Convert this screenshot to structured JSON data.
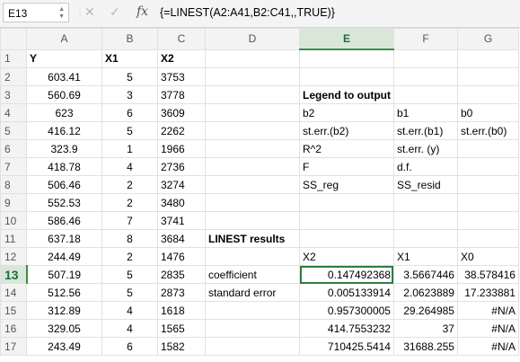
{
  "formula_bar": {
    "name_box": "E13",
    "cancel_icon": "✕",
    "enter_icon": "✓",
    "fx_label": "fx",
    "formula": "{=LINEST(A2:A41,B2:C41,,TRUE)}"
  },
  "columns": [
    "A",
    "B",
    "C",
    "D",
    "E",
    "F",
    "G"
  ],
  "rows": [
    {
      "n": "1",
      "A": "Y",
      "B": "X1",
      "C": "X2",
      "D": "",
      "E": "",
      "F": "",
      "G": ""
    },
    {
      "n": "2",
      "A": "603.41",
      "B": "5",
      "C": "3753",
      "D": "",
      "E": "",
      "F": "",
      "G": ""
    },
    {
      "n": "3",
      "A": "560.69",
      "B": "3",
      "C": "3778",
      "D": "",
      "E": "Legend to output",
      "F": "",
      "G": ""
    },
    {
      "n": "4",
      "A": "623",
      "B": "6",
      "C": "3609",
      "D": "",
      "E": "b2",
      "F": "b1",
      "G": "b0"
    },
    {
      "n": "5",
      "A": "416.12",
      "B": "5",
      "C": "2262",
      "D": "",
      "E": "st.err.(b2)",
      "F": "st.err.(b1)",
      "G": "st.err.(b0)"
    },
    {
      "n": "6",
      "A": "323.9",
      "B": "1",
      "C": "1966",
      "D": "",
      "E": "R^2",
      "F": "st.err. (y)",
      "G": ""
    },
    {
      "n": "7",
      "A": "418.78",
      "B": "4",
      "C": "2736",
      "D": "",
      "E": "F",
      "F": "d.f.",
      "G": ""
    },
    {
      "n": "8",
      "A": "506.46",
      "B": "2",
      "C": "3274",
      "D": "",
      "E": "SS_reg",
      "F": "SS_resid",
      "G": ""
    },
    {
      "n": "9",
      "A": "552.53",
      "B": "2",
      "C": "3480",
      "D": "",
      "E": "",
      "F": "",
      "G": ""
    },
    {
      "n": "10",
      "A": "586.46",
      "B": "7",
      "C": "3741",
      "D": "",
      "E": "",
      "F": "",
      "G": ""
    },
    {
      "n": "11",
      "A": "637.18",
      "B": "8",
      "C": "3684",
      "D": "LINEST results",
      "E": "",
      "F": "",
      "G": ""
    },
    {
      "n": "12",
      "A": "244.49",
      "B": "2",
      "C": "1476",
      "D": "",
      "E": "X2",
      "F": "X1",
      "G": "X0"
    },
    {
      "n": "13",
      "A": "507.19",
      "B": "5",
      "C": "2835",
      "D": "coefficient",
      "E": "0.147492368",
      "F": "3.5667446",
      "G": "38.578416"
    },
    {
      "n": "14",
      "A": "512.56",
      "B": "5",
      "C": "2873",
      "D": "standard error",
      "E": "0.005133914",
      "F": "2.0623889",
      "G": "17.233881"
    },
    {
      "n": "15",
      "A": "312.89",
      "B": "4",
      "C": "1618",
      "D": "",
      "E": "0.957300005",
      "F": "29.264985",
      "G": "#N/A"
    },
    {
      "n": "16",
      "A": "329.05",
      "B": "4",
      "C": "1565",
      "D": "",
      "E": "414.7553232",
      "F": "37",
      "G": "#N/A"
    },
    {
      "n": "17",
      "A": "243.49",
      "B": "6",
      "C": "1582",
      "D": "",
      "E": "710425.5414",
      "F": "31688.255",
      "G": "#N/A"
    }
  ],
  "colors": {
    "selection": "#2e7d43",
    "header_active": "#d9e7d9"
  }
}
